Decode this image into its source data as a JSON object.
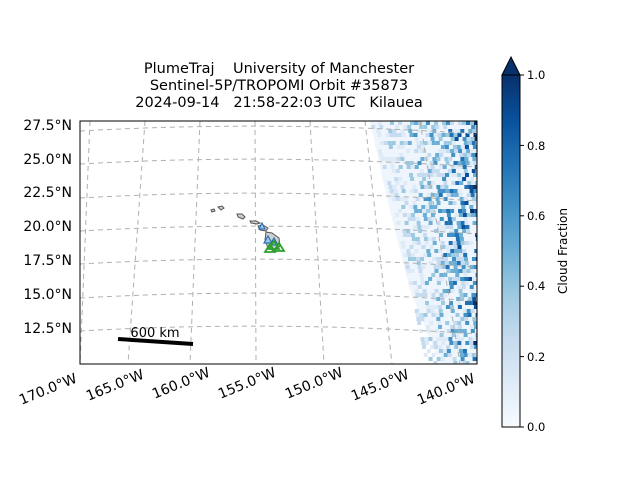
{
  "title": {
    "line1": "PlumeTraj    University of Manchester",
    "line2": "Sentinel-5P/TROPOMI Orbit #35873",
    "line3": "2024-09-14   21:58-22:03 UTC   Kilauea"
  },
  "map": {
    "lat_labels": [
      "27.5°N",
      "25.0°N",
      "22.5°N",
      "20.0°N",
      "17.5°N",
      "15.0°N",
      "12.5°N"
    ],
    "lon_labels": [
      "170.0°W",
      "165.0°W",
      "160.0°W",
      "155.0°W",
      "150.0°W",
      "145.0°W",
      "140.0°W"
    ],
    "scale_bar_label": "600 km",
    "gridlines": true,
    "data_colormap": "Blues",
    "volcano_marker_color": "#2ca02c",
    "other_volcano_marker_color": "#4a90d9"
  },
  "colorbar": {
    "label": "Cloud Fraction",
    "ticks": [
      "0.0",
      "0.2",
      "0.4",
      "0.6",
      "0.8",
      "1.0"
    ],
    "range": [
      0,
      1
    ],
    "extend": "max",
    "color_low": "#f7fbff",
    "color_high": "#08306b"
  }
}
